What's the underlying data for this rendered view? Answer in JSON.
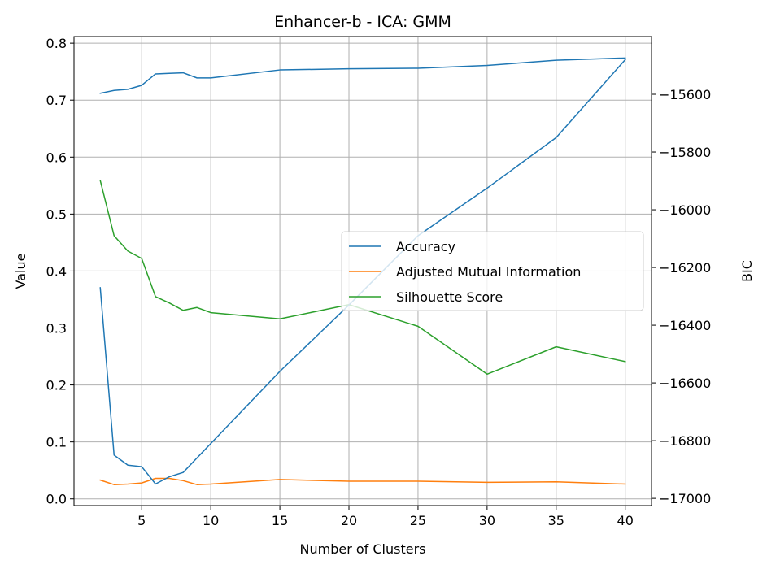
{
  "chart_data": {
    "type": "line",
    "title": "Enhancer-b - ICA: GMM",
    "xlabel": "Number of Clusters",
    "ylabel": "Value",
    "y2label": "BIC",
    "xlim": [
      0.1,
      41.9
    ],
    "ylim": [
      -0.0118,
      0.8116
    ],
    "y2lim": [
      -17025,
      -15400
    ],
    "xticks": [
      5,
      10,
      15,
      20,
      25,
      30,
      35,
      40
    ],
    "yticks": [
      0.0,
      0.1,
      0.2,
      0.3,
      0.4,
      0.5,
      0.6,
      0.7,
      0.8
    ],
    "y2ticks": [
      -17000,
      -16800,
      -16600,
      -16400,
      -16200,
      -16000,
      -15800,
      -15600
    ],
    "grid": true,
    "legend_position": "center-right",
    "x": [
      2,
      3,
      4,
      5,
      6,
      7,
      8,
      9,
      10,
      15,
      20,
      25,
      30,
      35,
      40
    ],
    "series": [
      {
        "name": "Accuracy",
        "axis": "left",
        "color": "#1f77b4",
        "values": [
          0.712,
          0.717,
          0.719,
          0.726,
          0.746,
          0.747,
          0.748,
          0.739,
          0.739,
          0.753,
          0.755,
          0.756,
          0.761,
          0.77,
          0.774
        ]
      },
      {
        "name": "Adjusted Mutual Information",
        "axis": "left",
        "color": "#ff7f0e",
        "values": [
          0.033,
          0.025,
          0.026,
          0.028,
          0.036,
          0.036,
          0.032,
          0.025,
          0.026,
          0.034,
          0.031,
          0.031,
          0.029,
          0.03,
          0.026
        ]
      },
      {
        "name": "Silhouette Score",
        "axis": "left",
        "color": "#2ca02c",
        "values": [
          0.559,
          0.462,
          0.435,
          0.422,
          0.355,
          0.344,
          0.331,
          0.336,
          0.327,
          0.316,
          0.341,
          0.303,
          0.219,
          0.267,
          0.241
        ]
      },
      {
        "name": "BIC",
        "axis": "right",
        "color": "#1f77b4",
        "values": [
          -16270,
          -16850,
          -16885,
          -16890,
          -16950,
          -16925,
          -16910,
          -16860,
          -16810,
          -16560,
          -16330,
          -16090,
          -15925,
          -15750,
          -15480
        ]
      }
    ],
    "legend": [
      "Accuracy",
      "Adjusted Mutual Information",
      "Silhouette Score"
    ]
  }
}
